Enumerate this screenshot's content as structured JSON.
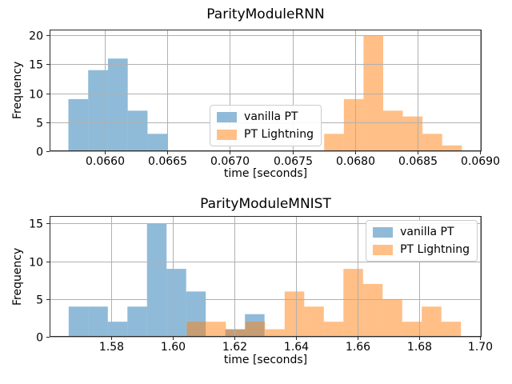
{
  "colors": {
    "background": "#ffffff",
    "vanilla_pt_base": "#1f77b4",
    "pt_lightning_base": "#ff7f0e",
    "bar_opacity": 0.5,
    "vanilla_pt_fill_on_white": "#8fbbd9",
    "pt_lightning_fill_on_white": "#ffbf86",
    "overlap_fill_on_white": "#c89c6f",
    "grid": "#b0b0b0",
    "spine": "#2b2b2b",
    "tick_text": "#000000"
  },
  "legend": {
    "items": [
      {
        "label": "vanilla PT",
        "color": "#1f77b4"
      },
      {
        "label": "PT Lightning",
        "color": "#ff7f0e"
      }
    ]
  },
  "chart_data": [
    {
      "type": "bar",
      "subtype": "histogram",
      "title": "ParityModuleRNN",
      "xlabel": "time [seconds]",
      "ylabel": "Frequency",
      "xlim": [
        0.06556,
        0.06901
      ],
      "ylim": [
        0,
        21
      ],
      "xticks": [
        0.066,
        0.0665,
        0.067,
        0.0675,
        0.068,
        0.0685,
        0.069
      ],
      "xtick_labels": [
        "0.0660",
        "0.0665",
        "0.0670",
        "0.0675",
        "0.0680",
        "0.0685",
        "0.0690"
      ],
      "yticks": [
        0,
        5,
        10,
        15,
        20
      ],
      "ytick_labels": [
        "0",
        "5",
        "10",
        "15",
        "20"
      ],
      "grid": true,
      "legend_loc": "lower center inside",
      "series": [
        {
          "name": "vanilla PT",
          "color": "#1f77b4",
          "bin_start": 0.06571,
          "bin_width": 0.000158,
          "counts": [
            9,
            14,
            16,
            7,
            3
          ]
        },
        {
          "name": "PT Lightning",
          "color": "#ff7f0e",
          "bin_start": 0.067753,
          "bin_width": 0.000157,
          "counts": [
            3,
            9,
            20,
            7,
            6,
            3,
            1
          ]
        }
      ]
    },
    {
      "type": "bar",
      "subtype": "histogram",
      "title": "ParityModuleMNIST",
      "xlabel": "time [seconds]",
      "ylabel": "Frequency",
      "xlim": [
        1.5599,
        1.7004
      ],
      "ylim": [
        0,
        16
      ],
      "xticks": [
        1.58,
        1.6,
        1.62,
        1.64,
        1.66,
        1.68,
        1.7
      ],
      "xtick_labels": [
        "1.58",
        "1.60",
        "1.62",
        "1.64",
        "1.66",
        "1.68",
        "1.70"
      ],
      "yticks": [
        0,
        5,
        10,
        15
      ],
      "ytick_labels": [
        "0",
        "5",
        "10",
        "15"
      ],
      "grid": true,
      "legend_loc": "upper right inside",
      "series": [
        {
          "name": "vanilla PT",
          "color": "#1f77b4",
          "bin_start": 1.5661,
          "bin_width": 0.00637,
          "counts": [
            4,
            4,
            2,
            4,
            15,
            9,
            6,
            0,
            1,
            3
          ]
        },
        {
          "name": "PT Lightning",
          "color": "#ff7f0e",
          "bin_start": 1.6045,
          "bin_width": 0.00637,
          "counts": [
            2,
            2,
            1,
            2,
            1,
            6,
            4,
            2,
            9,
            7,
            5,
            2,
            4,
            2
          ]
        }
      ]
    }
  ]
}
